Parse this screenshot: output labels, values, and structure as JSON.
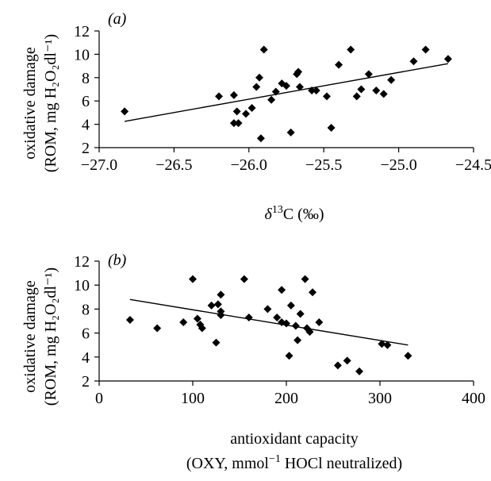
{
  "chart_data": [
    {
      "type": "scatter",
      "panel_label": "(a)",
      "xlabel_prefix": "δ",
      "xlabel_sup": "13",
      "xlabel_suffix": "C (‰)",
      "ylabel_line1": "oxidative damage",
      "ylabel_line2": "(ROM, mg H₂O₂dl⁻¹)",
      "xlim": [
        -27.0,
        -24.5
      ],
      "ylim": [
        2,
        12
      ],
      "xticks": [
        -27.0,
        -26.5,
        -26.0,
        -25.5,
        -25.0,
        -24.5
      ],
      "xtick_labels": [
        "−27.0",
        "−26.5",
        "−26.0",
        "−25.5",
        "−25.0",
        "−24.5"
      ],
      "yticks": [
        2,
        4,
        6,
        8,
        10,
        12
      ],
      "ytick_labels": [
        "2",
        "4",
        "6",
        "8",
        "10",
        "12"
      ],
      "grid": false,
      "legend": "none",
      "trendline": {
        "x": [
          -26.83,
          -24.67
        ],
        "y": [
          4.25,
          9.2
        ]
      },
      "points": [
        {
          "x": -26.83,
          "y": 5.1
        },
        {
          "x": -26.2,
          "y": 6.4
        },
        {
          "x": -26.1,
          "y": 6.5
        },
        {
          "x": -26.1,
          "y": 4.1
        },
        {
          "x": -26.08,
          "y": 5.1
        },
        {
          "x": -26.07,
          "y": 4.1
        },
        {
          "x": -26.02,
          "y": 4.9
        },
        {
          "x": -25.98,
          "y": 5.4
        },
        {
          "x": -25.95,
          "y": 7.2
        },
        {
          "x": -25.93,
          "y": 8.0
        },
        {
          "x": -25.92,
          "y": 2.8
        },
        {
          "x": -25.9,
          "y": 10.4
        },
        {
          "x": -25.85,
          "y": 6.1
        },
        {
          "x": -25.82,
          "y": 6.8
        },
        {
          "x": -25.78,
          "y": 7.5
        },
        {
          "x": -25.75,
          "y": 7.3
        },
        {
          "x": -25.72,
          "y": 3.3
        },
        {
          "x": -25.68,
          "y": 8.3
        },
        {
          "x": -25.67,
          "y": 8.5
        },
        {
          "x": -25.66,
          "y": 7.2
        },
        {
          "x": -25.58,
          "y": 6.9
        },
        {
          "x": -25.55,
          "y": 6.9
        },
        {
          "x": -25.48,
          "y": 6.4
        },
        {
          "x": -25.45,
          "y": 3.7
        },
        {
          "x": -25.4,
          "y": 9.1
        },
        {
          "x": -25.32,
          "y": 10.4
        },
        {
          "x": -25.28,
          "y": 6.4
        },
        {
          "x": -25.25,
          "y": 7.0
        },
        {
          "x": -25.2,
          "y": 8.3
        },
        {
          "x": -25.15,
          "y": 6.9
        },
        {
          "x": -25.1,
          "y": 6.6
        },
        {
          "x": -25.05,
          "y": 7.8
        },
        {
          "x": -24.9,
          "y": 9.4
        },
        {
          "x": -24.82,
          "y": 10.4
        },
        {
          "x": -24.67,
          "y": 9.6
        }
      ]
    },
    {
      "type": "scatter",
      "panel_label": "(b)",
      "xlabel_line1": "antioxidant capacity",
      "xlabel_line2_prefix": "(OXY, mmol",
      "xlabel_line2_sup": "−1",
      "xlabel_line2_suffix": " HOCl neutralized)",
      "ylabel_line1": "oxidative damage",
      "ylabel_line2": "(ROM, mg H₂O₂dl⁻¹)",
      "xlim": [
        0,
        400
      ],
      "ylim": [
        2,
        12
      ],
      "xticks": [
        0,
        100,
        200,
        300,
        400
      ],
      "xtick_labels": [
        "0",
        "100",
        "200",
        "300",
        "400"
      ],
      "yticks": [
        2,
        4,
        6,
        8,
        10,
        12
      ],
      "ytick_labels": [
        "2",
        "4",
        "6",
        "8",
        "10",
        "12"
      ],
      "grid": false,
      "legend": "none",
      "trendline": {
        "x": [
          33,
          330
        ],
        "y": [
          8.8,
          5.0
        ]
      },
      "points": [
        {
          "x": 33,
          "y": 7.1
        },
        {
          "x": 62,
          "y": 6.4
        },
        {
          "x": 90,
          "y": 6.9
        },
        {
          "x": 100,
          "y": 10.5
        },
        {
          "x": 105,
          "y": 7.2
        },
        {
          "x": 108,
          "y": 6.7
        },
        {
          "x": 110,
          "y": 6.4
        },
        {
          "x": 120,
          "y": 8.3
        },
        {
          "x": 125,
          "y": 5.2
        },
        {
          "x": 127,
          "y": 8.4
        },
        {
          "x": 130,
          "y": 9.2
        },
        {
          "x": 130,
          "y": 7.8
        },
        {
          "x": 130,
          "y": 7.5
        },
        {
          "x": 155,
          "y": 10.5
        },
        {
          "x": 160,
          "y": 7.3
        },
        {
          "x": 180,
          "y": 8.0
        },
        {
          "x": 190,
          "y": 7.3
        },
        {
          "x": 195,
          "y": 9.6
        },
        {
          "x": 195,
          "y": 6.9
        },
        {
          "x": 200,
          "y": 6.8
        },
        {
          "x": 203,
          "y": 4.1
        },
        {
          "x": 205,
          "y": 8.3
        },
        {
          "x": 210,
          "y": 6.6
        },
        {
          "x": 212,
          "y": 5.4
        },
        {
          "x": 215,
          "y": 7.6
        },
        {
          "x": 220,
          "y": 10.5
        },
        {
          "x": 222,
          "y": 6.4
        },
        {
          "x": 225,
          "y": 6.1
        },
        {
          "x": 228,
          "y": 9.4
        },
        {
          "x": 235,
          "y": 6.9
        },
        {
          "x": 255,
          "y": 3.3
        },
        {
          "x": 265,
          "y": 3.7
        },
        {
          "x": 278,
          "y": 2.8
        },
        {
          "x": 302,
          "y": 5.1
        },
        {
          "x": 308,
          "y": 5.0
        },
        {
          "x": 330,
          "y": 4.1
        }
      ]
    }
  ]
}
